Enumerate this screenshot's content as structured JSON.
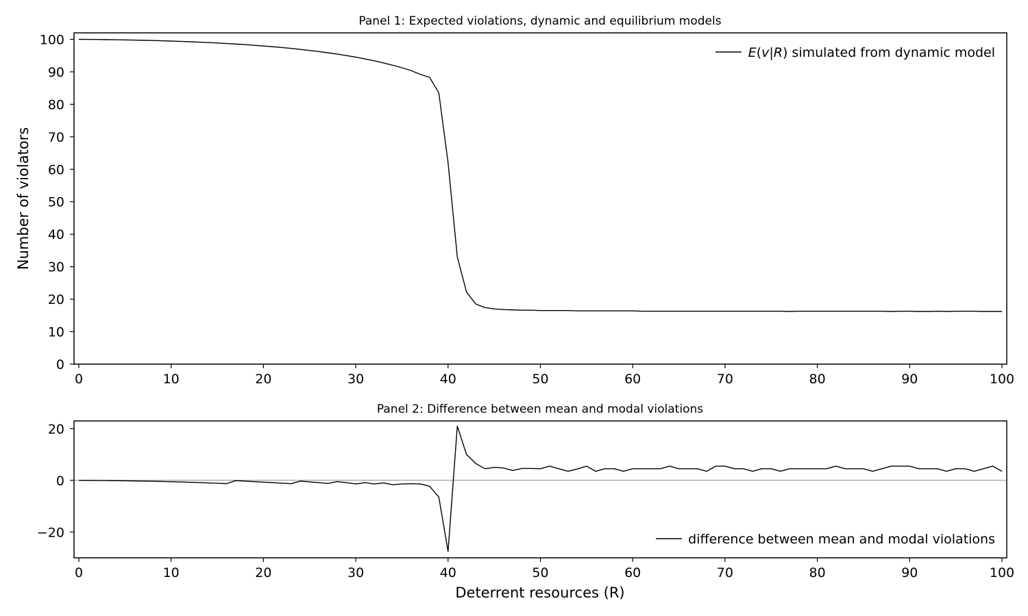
{
  "chart_data": [
    {
      "type": "line",
      "title": "Panel 1: Expected violations, dynamic and equilibrium models",
      "xlabel": "",
      "ylabel": "Number of violators",
      "xlim": [
        0,
        100
      ],
      "ylim": [
        0,
        102
      ],
      "xticks": [
        0,
        10,
        20,
        30,
        40,
        50,
        60,
        70,
        80,
        90,
        100
      ],
      "yticks": [
        0,
        10,
        20,
        30,
        40,
        50,
        60,
        70,
        80,
        90,
        100
      ],
      "grid": false,
      "legend_position": "top-right",
      "zero_line": false,
      "series": [
        {
          "name": "E(v|R) simulated from dynamic model",
          "color": "#000000",
          "x": [
            0,
            1,
            2,
            3,
            4,
            5,
            6,
            7,
            8,
            9,
            10,
            11,
            12,
            13,
            14,
            15,
            16,
            17,
            18,
            19,
            20,
            21,
            22,
            23,
            24,
            25,
            26,
            27,
            28,
            29,
            30,
            31,
            32,
            33,
            34,
            35,
            36,
            37,
            38,
            39,
            40,
            41,
            42,
            43,
            44,
            45,
            46,
            47,
            48,
            49,
            50,
            51,
            52,
            53,
            54,
            55,
            56,
            57,
            58,
            59,
            60,
            61,
            62,
            63,
            64,
            65,
            66,
            67,
            68,
            69,
            70,
            71,
            72,
            73,
            74,
            75,
            76,
            77,
            78,
            79,
            80,
            81,
            82,
            83,
            84,
            85,
            86,
            87,
            88,
            89,
            90,
            91,
            92,
            93,
            94,
            95,
            96,
            97,
            98,
            99,
            100
          ],
          "values": [
            100,
            99.98,
            99.95,
            99.92,
            99.88,
            99.83,
            99.77,
            99.71,
            99.64,
            99.56,
            99.47,
            99.37,
            99.26,
            99.14,
            99.01,
            98.87,
            98.72,
            98.55,
            98.37,
            98.17,
            97.96,
            97.73,
            97.48,
            97.21,
            96.91,
            96.59,
            96.24,
            95.86,
            95.45,
            95.0,
            94.52,
            93.98,
            93.4,
            92.75,
            92.04,
            91.25,
            90.38,
            89.2,
            88.3,
            83.5,
            62.0,
            33.0,
            22.2,
            18.5,
            17.4,
            17.0,
            16.8,
            16.7,
            16.6,
            16.6,
            16.5,
            16.5,
            16.5,
            16.5,
            16.4,
            16.4,
            16.4,
            16.4,
            16.4,
            16.4,
            16.4,
            16.3,
            16.3,
            16.3,
            16.3,
            16.3,
            16.3,
            16.3,
            16.3,
            16.3,
            16.3,
            16.3,
            16.3,
            16.3,
            16.3,
            16.3,
            16.3,
            16.2,
            16.3,
            16.3,
            16.3,
            16.3,
            16.3,
            16.3,
            16.3,
            16.3,
            16.3,
            16.3,
            16.2,
            16.3,
            16.3,
            16.2,
            16.2,
            16.3,
            16.2,
            16.3,
            16.3,
            16.3,
            16.2,
            16.2,
            16.2
          ]
        }
      ]
    },
    {
      "type": "line",
      "title": "Panel 2: Difference between mean and modal violations",
      "xlabel": "Deterrent resources (R)",
      "ylabel": "",
      "xlim": [
        0,
        100
      ],
      "ylim": [
        -30,
        23
      ],
      "xticks": [
        0,
        10,
        20,
        30,
        40,
        50,
        60,
        70,
        80,
        90,
        100
      ],
      "yticks": [
        -20,
        0,
        20
      ],
      "y_tick_labels": [
        "−20",
        "0",
        "20"
      ],
      "grid": false,
      "legend_position": "bottom-right",
      "zero_line": true,
      "series": [
        {
          "name": "difference between mean and modal violations",
          "color": "#000000",
          "x": [
            0,
            1,
            2,
            3,
            4,
            5,
            6,
            7,
            8,
            9,
            10,
            11,
            12,
            13,
            14,
            15,
            16,
            17,
            18,
            19,
            20,
            21,
            22,
            23,
            24,
            25,
            26,
            27,
            28,
            29,
            30,
            31,
            32,
            33,
            34,
            35,
            36,
            37,
            38,
            39,
            40,
            41,
            42,
            43,
            44,
            45,
            46,
            47,
            48,
            49,
            50,
            51,
            52,
            53,
            54,
            55,
            56,
            57,
            58,
            59,
            60,
            61,
            62,
            63,
            64,
            65,
            66,
            67,
            68,
            69,
            70,
            71,
            72,
            73,
            74,
            75,
            76,
            77,
            78,
            79,
            80,
            81,
            82,
            83,
            84,
            85,
            86,
            87,
            88,
            89,
            90,
            91,
            92,
            93,
            94,
            95,
            96,
            97,
            98,
            99,
            100
          ],
          "values": [
            0,
            -0.02,
            -0.05,
            -0.08,
            -0.12,
            -0.17,
            -0.23,
            -0.29,
            -0.36,
            -0.44,
            -0.53,
            -0.63,
            -0.74,
            -0.86,
            -0.99,
            -1.13,
            -1.28,
            -0.1,
            -0.3,
            -0.5,
            -0.7,
            -0.9,
            -1.1,
            -1.3,
            -0.3,
            -0.6,
            -0.9,
            -1.2,
            -0.5,
            -0.9,
            -1.4,
            -0.9,
            -1.4,
            -1.0,
            -1.7,
            -1.4,
            -1.3,
            -1.4,
            -2.3,
            -6.5,
            -27.5,
            21.0,
            10.0,
            6.5,
            4.5,
            5.0,
            4.8,
            3.8,
            4.6,
            4.6,
            4.5,
            5.5,
            4.5,
            3.5,
            4.4,
            5.5,
            3.5,
            4.5,
            4.5,
            3.5,
            4.5,
            4.5,
            4.5,
            4.5,
            5.5,
            4.5,
            4.5,
            4.5,
            3.5,
            5.5,
            5.5,
            4.5,
            4.5,
            3.5,
            4.5,
            4.5,
            3.5,
            4.5,
            4.5,
            4.5,
            4.5,
            4.5,
            5.5,
            4.5,
            4.5,
            4.5,
            3.5,
            4.5,
            5.5,
            5.5,
            5.5,
            4.5,
            4.5,
            4.5,
            3.5,
            4.5,
            4.5,
            3.5,
            4.5,
            5.5,
            3.5
          ]
        }
      ]
    }
  ]
}
